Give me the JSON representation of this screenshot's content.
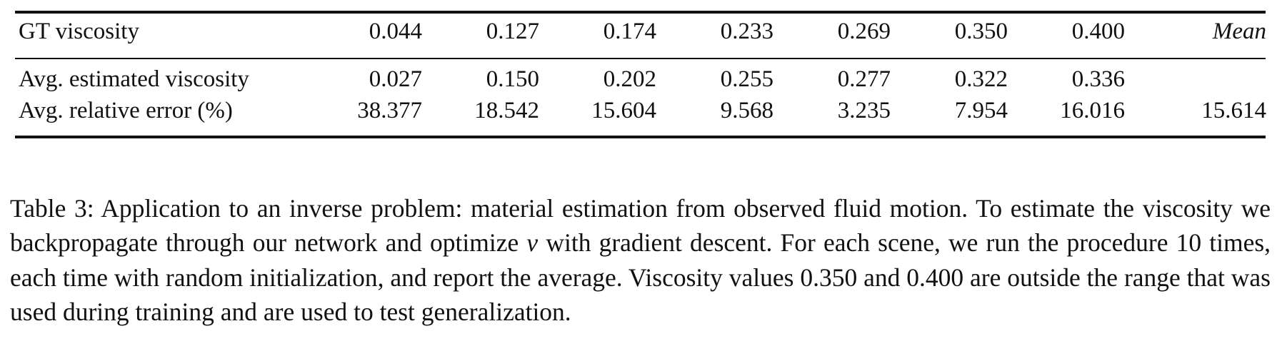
{
  "table": {
    "header": {
      "label": "GT viscosity",
      "values": [
        "0.044",
        "0.127",
        "0.174",
        "0.233",
        "0.269",
        "0.350",
        "0.400"
      ],
      "mean": "Mean"
    },
    "rows": [
      {
        "label": "Avg. estimated viscosity",
        "values": [
          "0.027",
          "0.150",
          "0.202",
          "0.255",
          "0.277",
          "0.322",
          "0.336"
        ],
        "mean": ""
      },
      {
        "label": "Avg. relative error (%)",
        "values": [
          "38.377",
          "18.542",
          "15.604",
          "9.568",
          "3.235",
          "7.954",
          "16.016"
        ],
        "mean": "15.614"
      }
    ]
  },
  "caption": {
    "part1": "Table 3: Application to an inverse problem: material estimation from observed fluid motion. To estimate the viscosity we backpropagate through our network and optimize",
    "symbol": "ν",
    "part2": "with gradient descent. For each scene, we run the procedure 10 times, each time with random initialization, and report the average. Viscosity values 0.350 and 0.400 are outside the range that was used during training and are used to test generalization."
  }
}
